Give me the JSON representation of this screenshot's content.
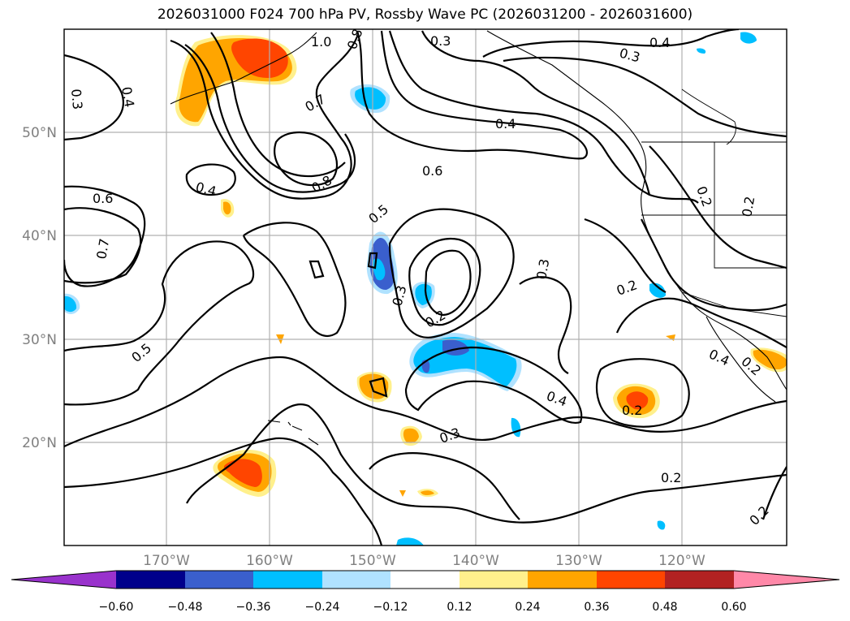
{
  "title": "2026031000 F024 700 hPa PV, Rossby Wave PC (2026031200 - 2026031600)",
  "map": {
    "lat_labels": [
      "50°N",
      "40°N",
      "30°N",
      "20°N"
    ],
    "lon_labels": [
      "170°W",
      "160°W",
      "150°W",
      "140°W",
      "130°W",
      "120°W"
    ],
    "contour_labels": [
      "1.0",
      "0.8",
      "0.3",
      "0.4",
      "0.3",
      "0.3",
      "0.4",
      "0.7",
      "0.4",
      "0.6",
      "0.8",
      "0.4",
      "0.6",
      "0.5",
      "0.2",
      "0.2",
      "0.7",
      "0.3",
      "0.3",
      "0.2",
      "0.2",
      "0.5",
      "0.4",
      "0.4",
      "0.2",
      "0.3",
      "0.2",
      "0.2",
      "0.2"
    ]
  },
  "colorbar": {
    "tick_labels": [
      "−0.60",
      "−0.48",
      "−0.36",
      "−0.24",
      "−0.12",
      "0.12",
      "0.24",
      "0.36",
      "0.48",
      "0.60"
    ],
    "colors": [
      "#9932cc",
      "#00008b",
      "#3a5fcd",
      "#00bfff",
      "#b0e2ff",
      "#ffffff",
      "#fff08c",
      "#ffa500",
      "#ff4500",
      "#b22222",
      "#ff88a8",
      "#ff88a8"
    ]
  }
}
